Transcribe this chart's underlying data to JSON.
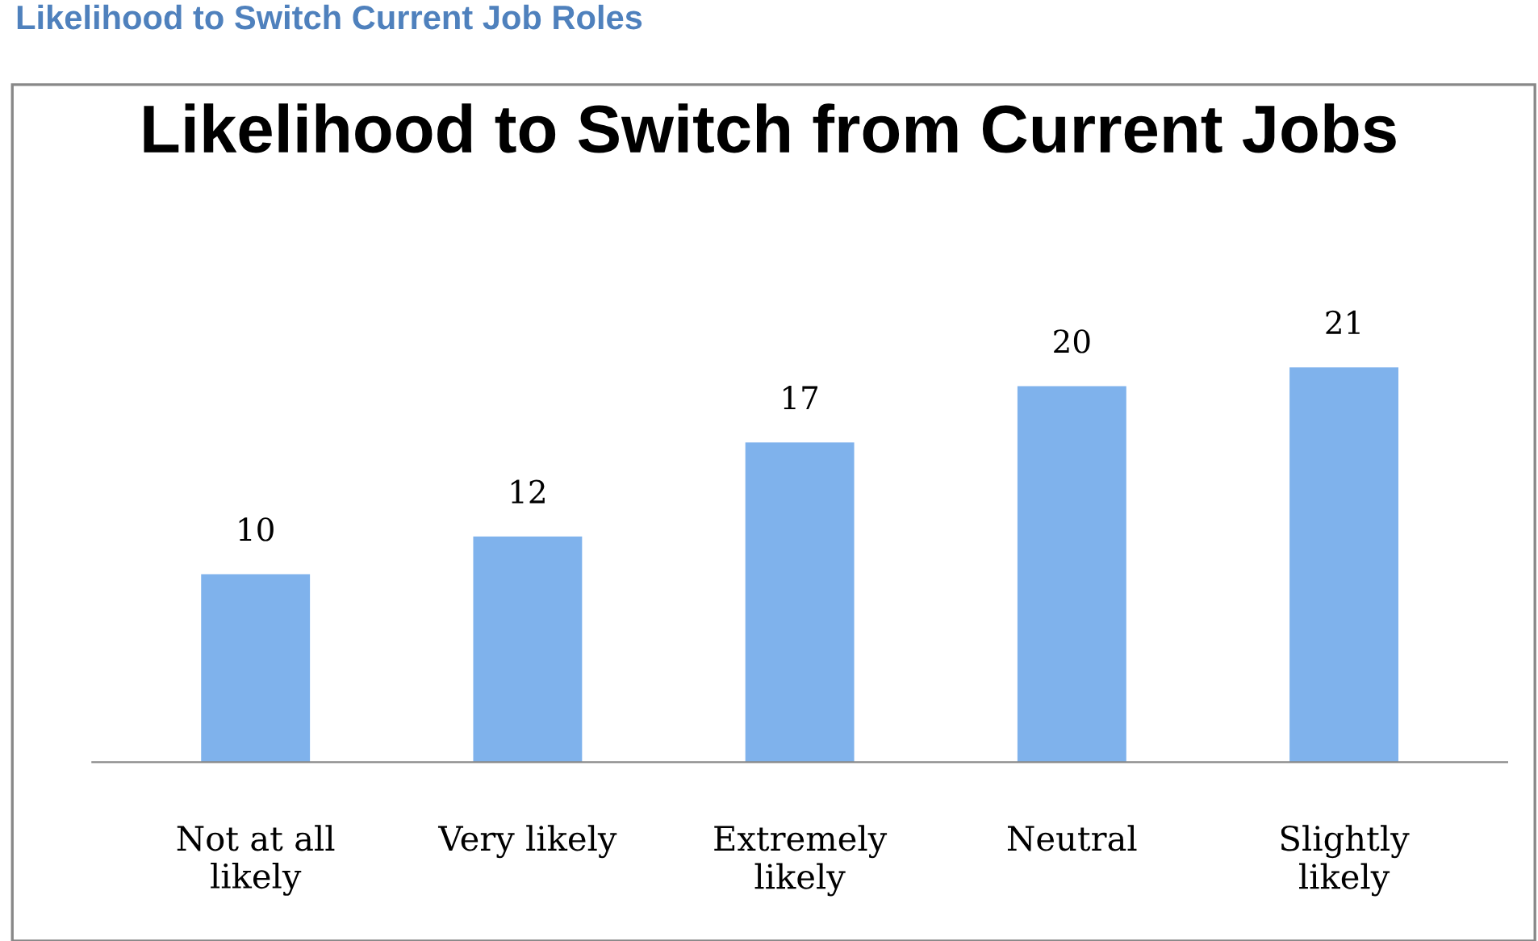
{
  "chart_data": {
    "type": "bar",
    "title": "Likelihood to Switch from Current Jobs",
    "annotations": [
      "Likelihood to Switch Current Job Roles"
    ],
    "categories": [
      "Not at all likely",
      "Very likely",
      "Extremely likely",
      "Neutral",
      "Slightly likely"
    ],
    "values": [
      10,
      12,
      17,
      20,
      21
    ],
    "color": "#7fb2ec",
    "data_labels": true,
    "grid": false,
    "legend": false
  }
}
